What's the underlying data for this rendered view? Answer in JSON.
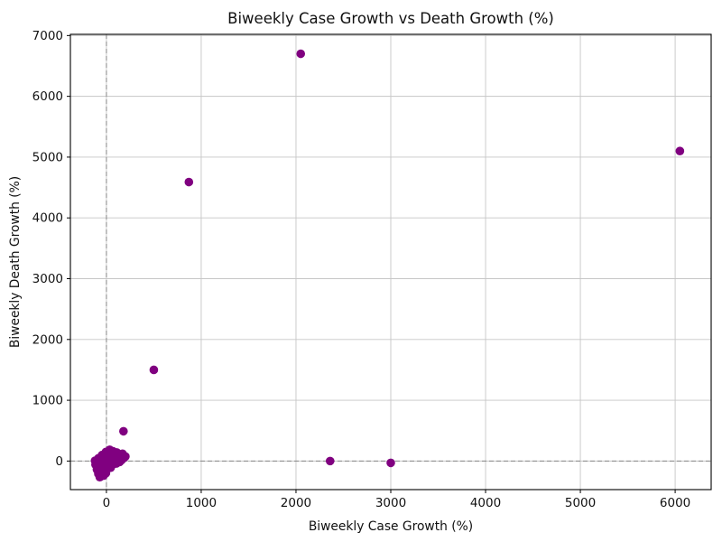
{
  "chart_data": {
    "type": "scatter",
    "title": "Biweekly Case Growth vs Death Growth (%)",
    "xlabel": "Biweekly Case Growth (%)",
    "ylabel": "Biweekly Death Growth (%)",
    "xlim": [
      -380,
      6380
    ],
    "ylim": [
      -470,
      7020
    ],
    "x_ticks": [
      0,
      1000,
      2000,
      3000,
      4000,
      5000,
      6000
    ],
    "y_ticks": [
      0,
      1000,
      2000,
      3000,
      4000,
      5000,
      6000,
      7000
    ],
    "grid": true,
    "legend": "none",
    "grid_color": "#c6c6c6",
    "zero_line_color": "#8a8a8a",
    "spine_color": "#000000",
    "marker_color": "#800080",
    "marker_radius": 4.8,
    "zero_lines": {
      "x": 0,
      "y": 0
    },
    "points": [
      [
        2050,
        6700
      ],
      [
        6050,
        5100
      ],
      [
        870,
        4590
      ],
      [
        500,
        1500
      ],
      [
        180,
        490
      ],
      [
        2360,
        0
      ],
      [
        3000,
        -30
      ],
      [
        -115,
        -60
      ],
      [
        -100,
        -140
      ],
      [
        -85,
        -210
      ],
      [
        -70,
        -265
      ],
      [
        -55,
        -230
      ],
      [
        -45,
        -160
      ],
      [
        -95,
        -40
      ],
      [
        -75,
        -100
      ],
      [
        -60,
        -30
      ],
      [
        -35,
        -80
      ],
      [
        -20,
        -140
      ],
      [
        -5,
        -200
      ],
      [
        -30,
        -240
      ],
      [
        10,
        -90
      ],
      [
        -10,
        -30
      ],
      [
        5,
        10
      ],
      [
        25,
        -45
      ],
      [
        45,
        -110
      ],
      [
        65,
        -60
      ],
      [
        30,
        40
      ],
      [
        55,
        25
      ],
      [
        85,
        -10
      ],
      [
        105,
        -40
      ],
      [
        75,
        70
      ],
      [
        50,
        110
      ],
      [
        20,
        130
      ],
      [
        -15,
        80
      ],
      [
        95,
        55
      ],
      [
        120,
        25
      ],
      [
        140,
        -15
      ],
      [
        160,
        15
      ],
      [
        185,
        50
      ],
      [
        135,
        90
      ],
      [
        110,
        140
      ],
      [
        70,
        160
      ],
      [
        35,
        185
      ],
      [
        -5,
        150
      ],
      [
        -45,
        100
      ],
      [
        -85,
        45
      ],
      [
        -120,
        5
      ],
      [
        200,
        75
      ],
      [
        170,
        120
      ]
    ]
  }
}
